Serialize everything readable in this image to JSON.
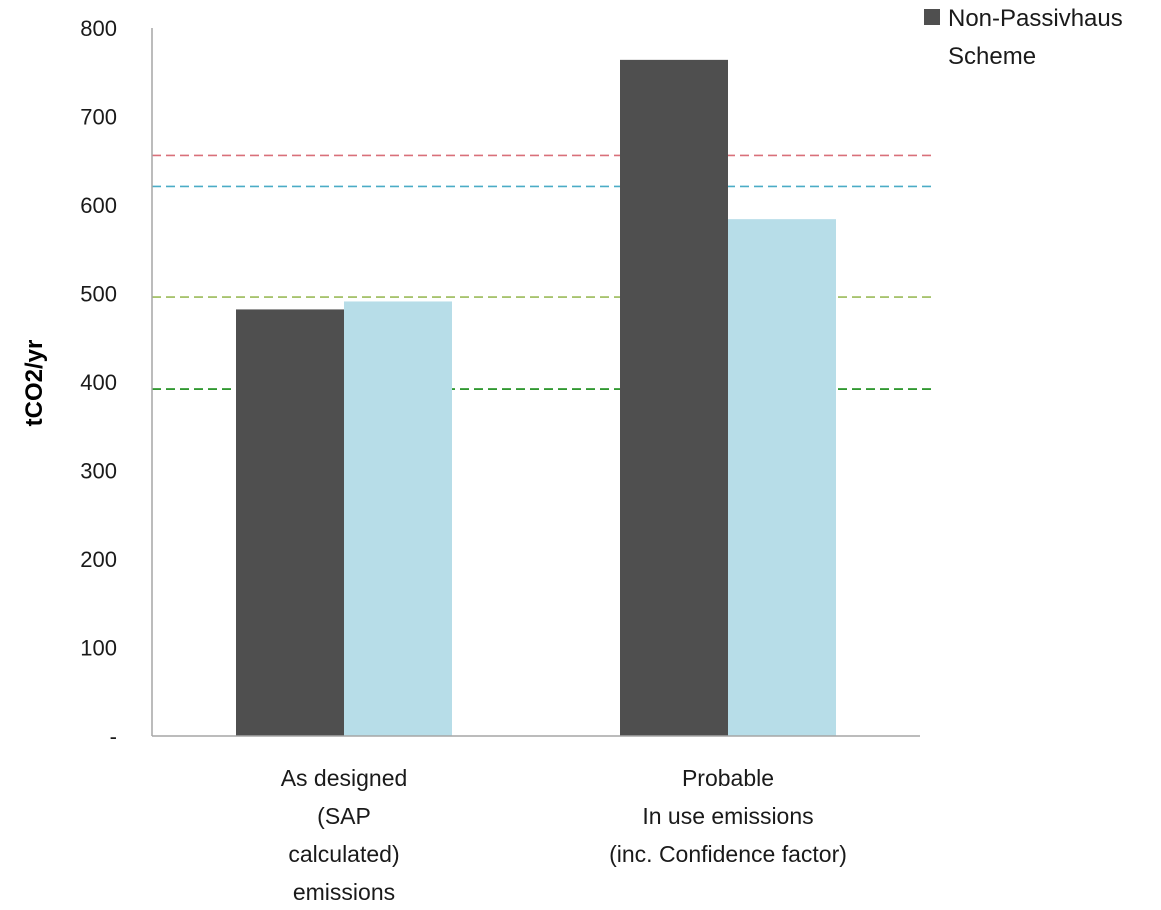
{
  "chart_data": {
    "type": "bar",
    "categories": [
      [
        "As designed",
        "(SAP",
        "calculated)",
        "emissions"
      ],
      [
        "Probable",
        "In use emissions",
        "(inc. Confidence factor)"
      ]
    ],
    "series": [
      {
        "name": "Non-Passivhaus Scheme",
        "color": "#4f4f4f",
        "values": [
          482,
          764
        ]
      },
      {
        "name": "",
        "color": "#b7dde8",
        "values": [
          491,
          584
        ]
      }
    ],
    "reference_lines": [
      {
        "value": 656,
        "color": "#d9707a"
      },
      {
        "value": 621,
        "color": "#4bacc6"
      },
      {
        "value": 496,
        "color": "#9bbb59"
      },
      {
        "value": 392,
        "color": "#138a13"
      }
    ],
    "ylabel": "tCO2/yr",
    "ylim": [
      0,
      800
    ],
    "yticks": [
      0,
      100,
      200,
      300,
      400,
      500,
      600,
      700,
      800
    ],
    "ytick_labels": [
      "-",
      "100",
      "200",
      "300",
      "400",
      "500",
      "600",
      "700",
      "800"
    ],
    "legend": {
      "placement": "top-right",
      "lines": [
        "Non-Passivhaus",
        "Scheme"
      ]
    },
    "grid": false
  }
}
